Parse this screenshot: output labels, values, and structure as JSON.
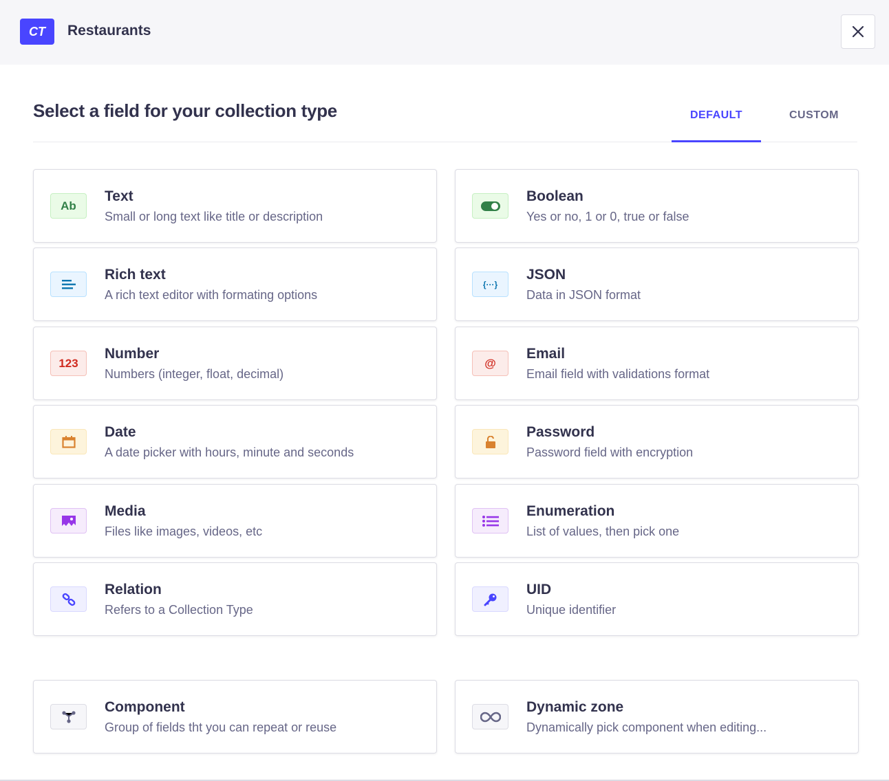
{
  "header": {
    "badge": "CT",
    "title": "Restaurants",
    "close_icon": "close-icon"
  },
  "main": {
    "heading": "Select a field for your collection type",
    "tabs": [
      {
        "label": "DEFAULT",
        "active": true
      },
      {
        "label": "CUSTOM",
        "active": false
      }
    ],
    "fields": [
      {
        "title": "Text",
        "description": "Small or long text like title or description",
        "icon": "text-ab-icon",
        "glyph": "Ab",
        "color": "#328048",
        "bg": "#eafbe7",
        "border": "#c6f0c2"
      },
      {
        "title": "Boolean",
        "description": "Yes or no, 1 or 0, true or false",
        "icon": "toggle-icon",
        "color": "#328048",
        "bg": "#eafbe7",
        "border": "#c6f0c2"
      },
      {
        "title": "Rich text",
        "description": "A rich text editor with formating options",
        "icon": "paragraph-icon",
        "color": "#0c75af",
        "bg": "#eaf5ff",
        "border": "#b8e1ff"
      },
      {
        "title": "JSON",
        "description": "Data in JSON format",
        "icon": "json-braces-icon",
        "glyph": "{···}",
        "color": "#0c75af",
        "bg": "#eaf5ff",
        "border": "#b8e1ff"
      },
      {
        "title": "Number",
        "description": "Numbers (integer, float, decimal)",
        "icon": "number-icon",
        "glyph": "123",
        "color": "#d02b20",
        "bg": "#fcecea",
        "border": "#f5c0b8"
      },
      {
        "title": "Email",
        "description": "Email field with validations format",
        "icon": "at-sign-icon",
        "glyph": "@",
        "color": "#d02b20",
        "bg": "#fcecea",
        "border": "#f5c0b8"
      },
      {
        "title": "Date",
        "description": "A date picker with hours, minute and seconds",
        "icon": "calendar-icon",
        "color": "#d9822f",
        "bg": "#fdf4dc",
        "border": "#fae7b9"
      },
      {
        "title": "Password",
        "description": "Password field with encryption",
        "icon": "lock-icon",
        "color": "#d9822f",
        "bg": "#fdf4dc",
        "border": "#fae7b9"
      },
      {
        "title": "Media",
        "description": "Files like images, videos, etc",
        "icon": "image-icon",
        "color": "#9736e8",
        "bg": "#f6ecfc",
        "border": "#e0c1f4"
      },
      {
        "title": "Enumeration",
        "description": "List of values, then pick one",
        "icon": "list-icon",
        "color": "#9736e8",
        "bg": "#f6ecfc",
        "border": "#e0c1f4"
      },
      {
        "title": "Relation",
        "description": "Refers to a Collection Type",
        "icon": "link-icon",
        "color": "#4945ff",
        "bg": "#f0f0ff",
        "border": "#d9d8ff"
      },
      {
        "title": "UID",
        "description": "Unique identifier",
        "icon": "key-icon",
        "color": "#4945ff",
        "bg": "#f0f0ff",
        "border": "#d9d8ff"
      },
      {
        "title": "Component",
        "description": "Group of fields tht you can repeat or reuse",
        "icon": "component-icon",
        "color": "#666687",
        "bg": "#f6f6f9",
        "border": "#dcdce4"
      },
      {
        "title": "Dynamic zone",
        "description": "Dynamically pick component when editing...",
        "icon": "infinity-icon",
        "color": "#666687",
        "bg": "#f6f6f9",
        "border": "#dcdce4"
      }
    ]
  }
}
